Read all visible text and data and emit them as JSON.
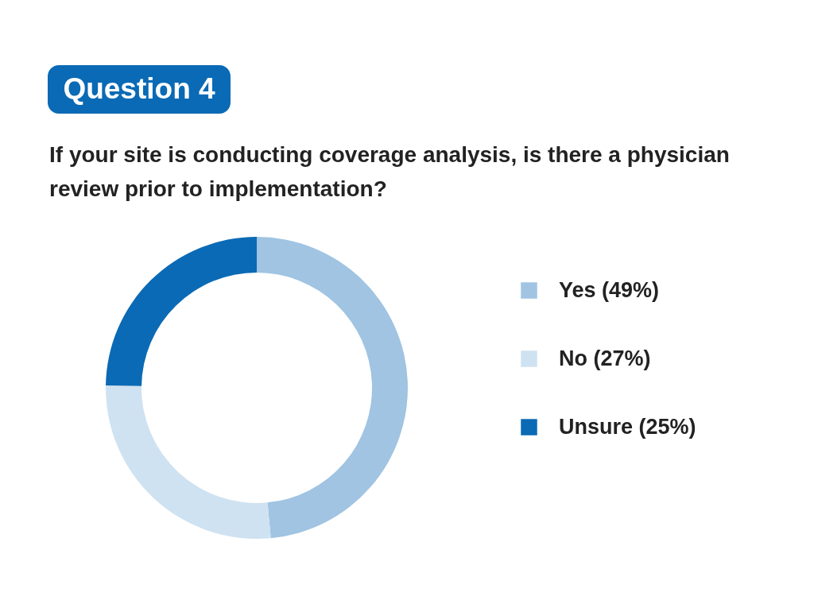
{
  "chart_data": {
    "type": "donut",
    "title": "Question 4",
    "subtitle": "If your site is conducting coverage analysis, is there a physician review prior to implementation?",
    "categories": [
      "Yes (49%)",
      "No (27%)",
      "Unsure (25%)"
    ],
    "values": [
      49,
      27,
      25
    ],
    "colors": [
      "#a0c4e2",
      "#cfe2f1",
      "#0a6ab5"
    ],
    "legend": "right"
  }
}
